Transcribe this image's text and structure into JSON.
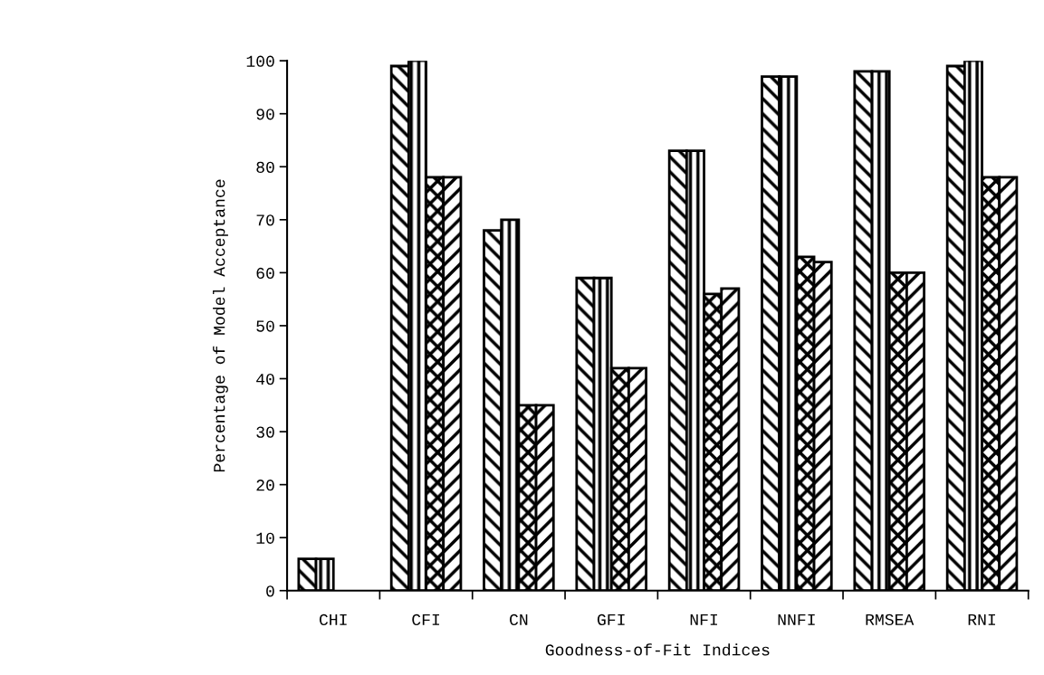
{
  "chart_data": {
    "type": "bar",
    "xlabel": "Goodness-of-Fit Indices",
    "ylabel": "Percentage of Model Acceptance",
    "categories": [
      "CHI",
      "CFI",
      "CN",
      "GFI",
      "NFI",
      "NNFI",
      "RMSEA",
      "RNI"
    ],
    "series": [
      {
        "color": "#000000",
        "values": [
          6,
          99,
          68,
          59,
          83,
          97,
          98,
          99
        ]
      },
      {
        "color": "#000000",
        "values": [
          6,
          100,
          70,
          59,
          83,
          97,
          98,
          100
        ]
      },
      {
        "color": "#000000",
        "values": [
          null,
          78,
          35,
          42,
          56,
          63,
          60,
          78
        ]
      },
      {
        "color": "#000000",
        "values": [
          null,
          78,
          35,
          42,
          57,
          62,
          60,
          78
        ]
      }
    ],
    "ylim": [
      0,
      100
    ],
    "yticks": [
      0,
      10,
      20,
      30,
      40,
      50,
      60,
      70,
      80,
      90,
      100
    ],
    "grid": false,
    "legend": false
  }
}
